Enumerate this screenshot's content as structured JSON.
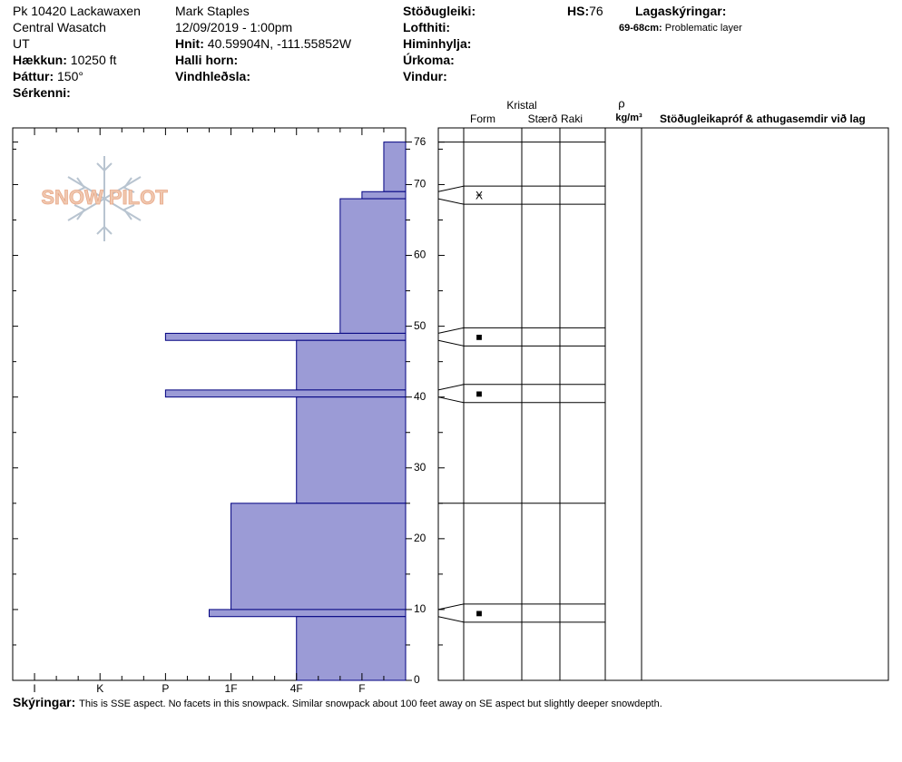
{
  "header": {
    "location": "Pk 10420 Lackawaxen",
    "range": "Central Wasatch",
    "state": "UT",
    "elevation": {
      "label": "Hækkun:",
      "value": "10250 ft"
    },
    "aspect": {
      "label": "Þáttur:",
      "value": "150°"
    },
    "features": {
      "label": "Sérkenni:"
    },
    "observer": "Mark Staples",
    "datetime": "12/09/2019 - 1:00pm",
    "coordinates": {
      "label": "Hnit:",
      "value": "40.59904N, -111.55852W"
    },
    "slope_angle": {
      "label": "Halli horn:"
    },
    "wind_loading": {
      "label": "Vindhleðsla:"
    },
    "stability": {
      "label": "Stöðugleiki:"
    },
    "air_temp": {
      "label": "Lofthiti:"
    },
    "sky": {
      "label": "Himinhylja:"
    },
    "precip": {
      "label": "Úrkoma:"
    },
    "wind": {
      "label": "Vindur:"
    },
    "hs": {
      "label": "HS:",
      "value": "76"
    },
    "layer_notes": {
      "label": "Lagaskýringar:",
      "items": [
        {
          "range": "69-68cm:",
          "text": "Problematic layer"
        }
      ]
    }
  },
  "comments": {
    "label": "Skýringar:",
    "text": "This is SSE aspect. No facets in this snowpack. Similar snowpack about 100 feet away on SE aspect but slightly deeper snowdepth."
  },
  "logo": "SNOW PILOT",
  "chart_data": {
    "type": "snow_profile",
    "color": "#9b9bd6",
    "edge_color": "#000080",
    "xlim": [
      19,
      1
    ],
    "xticks": [
      {
        "value": 18,
        "label": "I"
      },
      {
        "value": 15,
        "label": "K"
      },
      {
        "value": 12,
        "label": "P"
      },
      {
        "value": 9,
        "label": "1F"
      },
      {
        "value": 6,
        "label": "4F"
      },
      {
        "value": 3,
        "label": "F"
      }
    ],
    "x_minor_ticks": [
      2,
      4,
      5,
      7,
      8,
      10,
      11,
      13,
      14,
      16,
      17
    ],
    "ylim": [
      0,
      78
    ],
    "yticks": [
      0,
      10,
      20,
      30,
      40,
      50,
      60,
      70,
      76
    ],
    "y_minor_ticks": [
      5,
      15,
      25,
      35,
      45,
      55,
      65,
      75
    ],
    "layers": [
      {
        "top": 76,
        "bottom": 69,
        "hardness": 2
      },
      {
        "top": 69,
        "bottom": 68,
        "hardness": 3,
        "form": "Ӿ"
      },
      {
        "top": 68,
        "bottom": 49,
        "hardness": 4
      },
      {
        "top": 49,
        "bottom": 48,
        "hardness": 12,
        "form": "■"
      },
      {
        "top": 48,
        "bottom": 41,
        "hardness": 6
      },
      {
        "top": 41,
        "bottom": 40,
        "hardness": 12,
        "form": "■"
      },
      {
        "top": 40,
        "bottom": 25,
        "hardness": 6
      },
      {
        "top": 25,
        "bottom": 10,
        "hardness": 9
      },
      {
        "top": 10,
        "bottom": 9,
        "hardness": 10,
        "form": "■"
      },
      {
        "top": 9,
        "bottom": 0,
        "hardness": 6
      }
    ],
    "table_headers": {
      "crystal": "Kristal",
      "form": "Form",
      "size": "Stærð",
      "moisture": "Raki",
      "density_symbol": "ρ",
      "density_unit": "kg/m³",
      "tests": "Stöðugleikapróf & athugasemdir við lag"
    }
  }
}
